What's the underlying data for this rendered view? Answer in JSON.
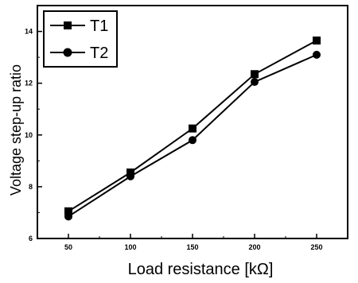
{
  "chart_data": {
    "type": "line",
    "title": "",
    "xlabel": "Load resistance [kΩ]",
    "ylabel": "Voltage step-up ratio",
    "x": [
      50,
      100,
      150,
      200,
      250
    ],
    "xticks": [
      "50",
      "100",
      "150",
      "200",
      "250"
    ],
    "yticks": [
      "6",
      "8",
      "10",
      "12",
      "14"
    ],
    "xlim": [
      25,
      275
    ],
    "ylim": [
      6,
      15
    ],
    "grid": false,
    "legend_position": "top-left",
    "series": [
      {
        "name": "T1",
        "marker": "square",
        "values": [
          7.05,
          8.55,
          10.25,
          12.35,
          13.65
        ]
      },
      {
        "name": "T2",
        "marker": "circle",
        "values": [
          6.85,
          8.4,
          9.8,
          12.05,
          13.1
        ]
      }
    ]
  }
}
